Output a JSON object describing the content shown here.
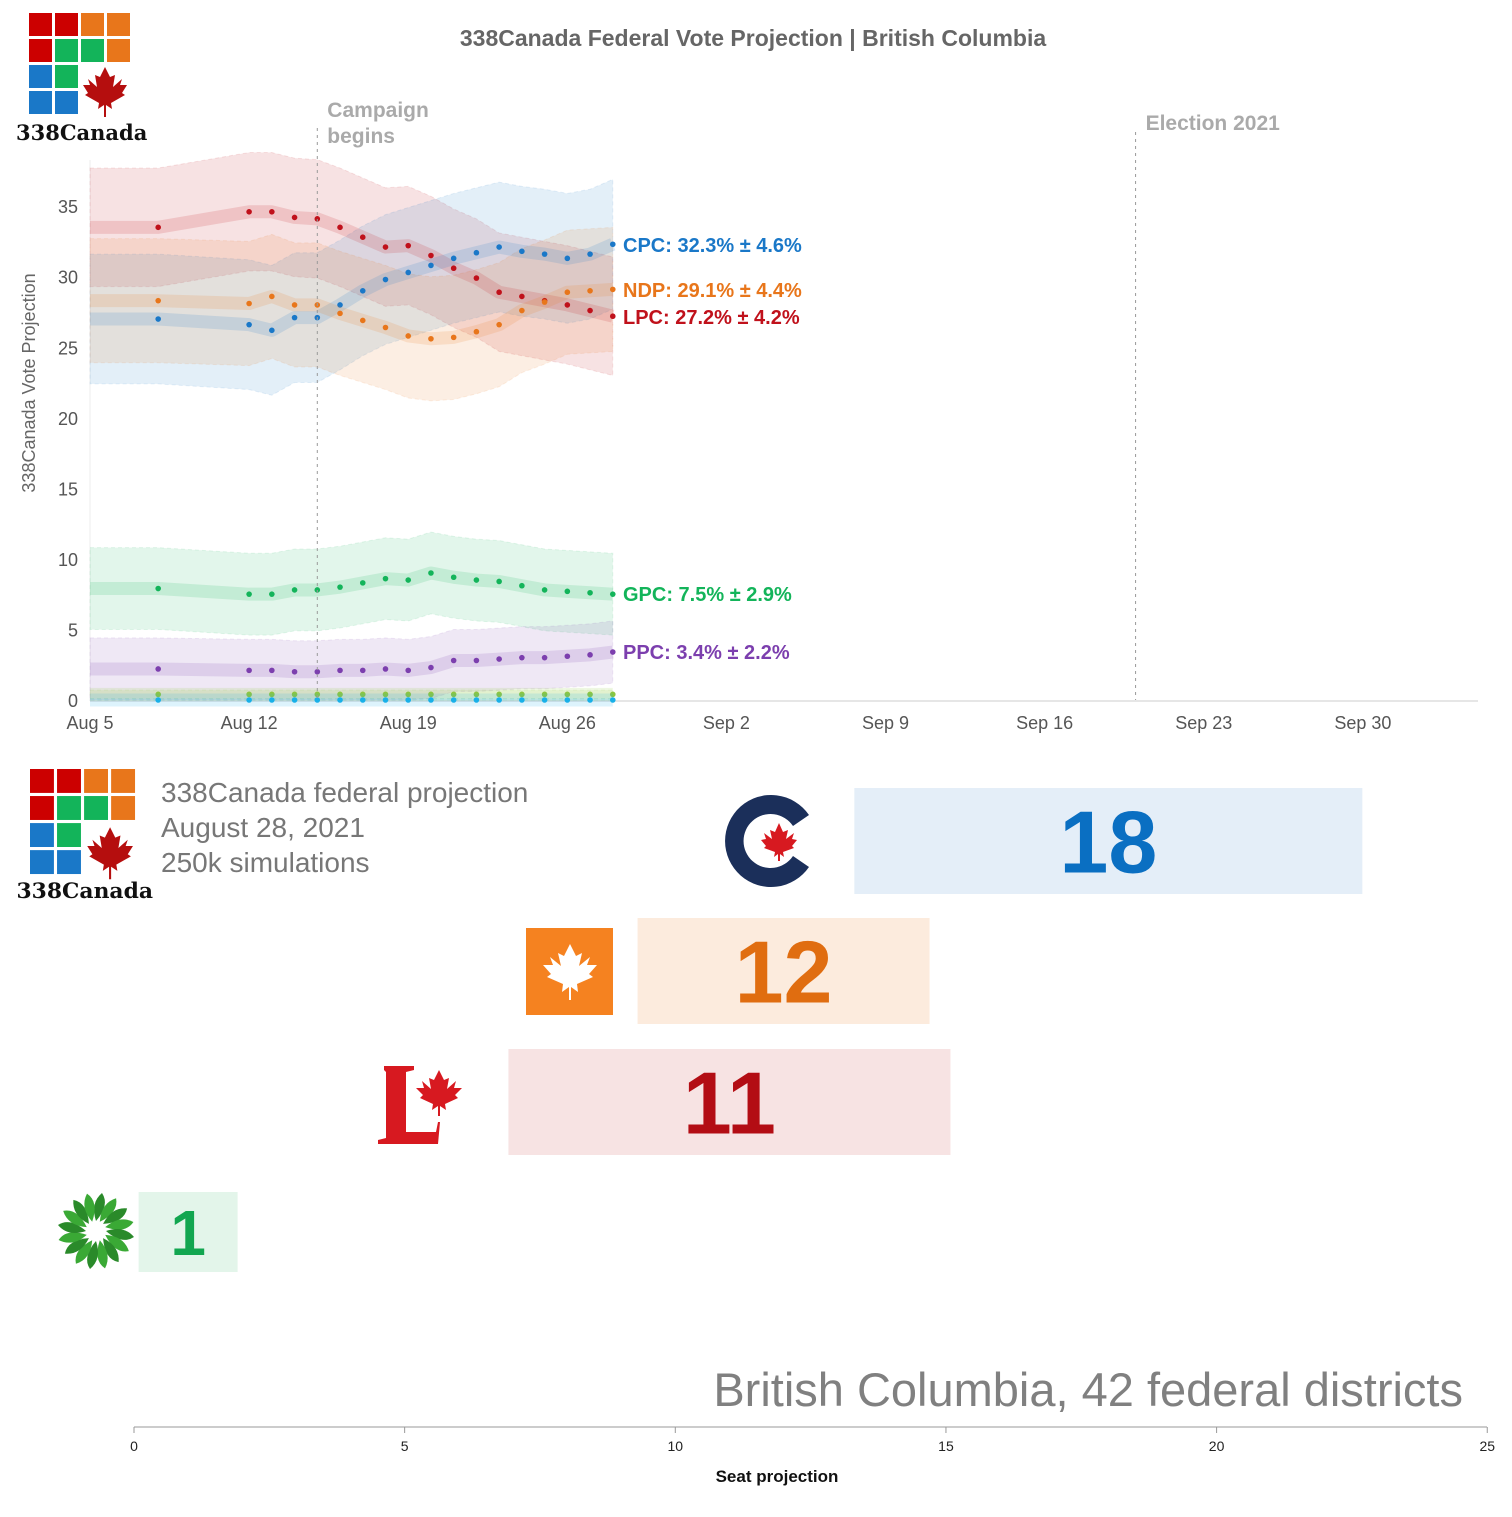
{
  "header": {
    "title": "338Canada Federal Vote Projection | British Columbia",
    "logo_text": "338Canada"
  },
  "chart_data": [
    {
      "type": "line",
      "title": "338Canada Federal Vote Projection | British Columbia",
      "ylabel": "338Canada Vote Projection",
      "xlabel": "",
      "ylim": [
        0,
        38
      ],
      "xlim": [
        "Aug 5",
        "Oct 6"
      ],
      "yticks": [
        "0",
        "5",
        "10",
        "15",
        "20",
        "25",
        "30",
        "35"
      ],
      "xticks": [
        "Aug 5",
        "Aug 12",
        "Aug 19",
        "Aug 26",
        "Sep 2",
        "Sep 9",
        "Sep 16",
        "Sep 23",
        "Sep 30"
      ],
      "annotations": [
        {
          "date": "Aug 15",
          "text": [
            "Campaign",
            "begins"
          ]
        },
        {
          "date": "Sep 20",
          "text": [
            "Election 2021"
          ]
        }
      ],
      "dates": [
        "Aug 8",
        "Aug 12",
        "Aug 13",
        "Aug 14",
        "Aug 15",
        "Aug 16",
        "Aug 17",
        "Aug 18",
        "Aug 19",
        "Aug 20",
        "Aug 21",
        "Aug 22",
        "Aug 23",
        "Aug 24",
        "Aug 25",
        "Aug 26",
        "Aug 27",
        "Aug 28"
      ],
      "series": [
        {
          "name": "LPC",
          "label": "LPC: 27.2% ± 4.2%",
          "color": "#c0111b",
          "margin": 4.2,
          "values": [
            33.5,
            34.6,
            34.6,
            34.2,
            34.1,
            33.5,
            32.8,
            32.1,
            32.2,
            31.5,
            30.6,
            29.9,
            28.9,
            28.6,
            28.3,
            28.0,
            27.6,
            27.2
          ]
        },
        {
          "name": "CPC",
          "label": "CPC: 32.3% ± 4.6%",
          "color": "#1a78c8",
          "margin": 4.6,
          "values": [
            27.0,
            26.6,
            26.2,
            27.1,
            27.1,
            28.0,
            29.0,
            29.8,
            30.3,
            30.8,
            31.3,
            31.7,
            32.1,
            31.8,
            31.6,
            31.3,
            31.6,
            32.3
          ]
        },
        {
          "name": "NDP",
          "label": "NDP: 29.1% ± 4.4%",
          "color": "#e8761b",
          "margin": 4.4,
          "values": [
            28.3,
            28.1,
            28.6,
            28.0,
            28.0,
            27.4,
            26.9,
            26.4,
            25.8,
            25.6,
            25.7,
            26.1,
            26.6,
            27.6,
            28.2,
            28.9,
            29.0,
            29.1
          ]
        },
        {
          "name": "GPC",
          "label": "GPC: 7.5% ± 2.9%",
          "color": "#13b45a",
          "margin": 2.9,
          "values": [
            7.9,
            7.5,
            7.5,
            7.8,
            7.8,
            8.0,
            8.3,
            8.6,
            8.5,
            9.0,
            8.7,
            8.5,
            8.4,
            8.1,
            7.8,
            7.7,
            7.6,
            7.5
          ]
        },
        {
          "name": "PPC",
          "label": "PPC: 3.4% ± 2.2%",
          "color": "#7c3fae",
          "margin": 2.2,
          "values": [
            2.2,
            2.1,
            2.1,
            2.0,
            2.0,
            2.1,
            2.1,
            2.2,
            2.1,
            2.3,
            2.8,
            2.8,
            2.9,
            3.0,
            3.0,
            3.1,
            3.2,
            3.4
          ]
        },
        {
          "name": "",
          "label": "",
          "color": "#8cc63f",
          "margin": 0.3,
          "values": [
            0.4,
            0.4,
            0.4,
            0.4,
            0.4,
            0.4,
            0.4,
            0.4,
            0.4,
            0.4,
            0.4,
            0.4,
            0.4,
            0.4,
            0.4,
            0.4,
            0.4,
            0.4
          ]
        },
        {
          "name": "",
          "label": "",
          "color": "#18b0e8",
          "margin": 0.1,
          "values": [
            0,
            0,
            0,
            0,
            0,
            0,
            0,
            0,
            0,
            0,
            0,
            0,
            0,
            0,
            0,
            0,
            0,
            0
          ]
        }
      ]
    },
    {
      "type": "bar",
      "xlabel": "Seat projection",
      "xlim": [
        0,
        25
      ],
      "xticks": [
        "0",
        "5",
        "10",
        "15",
        "20",
        "25"
      ],
      "categories": [
        "CPC",
        "NDP",
        "LPC",
        "GPC"
      ],
      "values": [
        18,
        12,
        11,
        1
      ],
      "labels": [
        "18",
        "12",
        "11",
        "1"
      ],
      "colors": {
        "CPC": "#0a6fc2",
        "NDP": "#e06d10",
        "LPC": "#b30d14",
        "GPC": "#12a650"
      },
      "bg_colors": {
        "CPC": "#e4eef8",
        "NDP": "#fcebdd",
        "LPC": "#f7e3e3",
        "GPC": "#e3f5ea"
      }
    }
  ],
  "info": {
    "line1": "338Canada  federal projection",
    "line2": "August 28, 2021",
    "line3": "250k simulations"
  },
  "footer": {
    "region": "British Columbia, 42 federal districts"
  }
}
